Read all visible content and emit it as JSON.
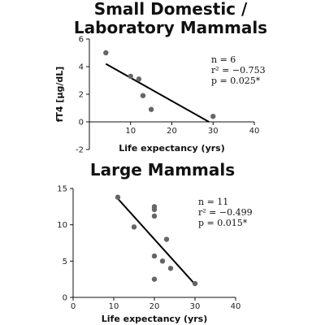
{
  "chart_data": [
    {
      "type": "scatter",
      "title_lines": [
        "Small Domestic /",
        "Laboratory Mammals"
      ],
      "xlabel": "Life expectancy (yrs)",
      "ylabel": "fT4 [μg/dL]",
      "xlim": [
        0,
        40
      ],
      "ylim": [
        -2,
        6
      ],
      "xticks": [
        10,
        20,
        30,
        40
      ],
      "yticks": [
        -2,
        0,
        2,
        4,
        6
      ],
      "points": [
        {
          "x": 4,
          "y": 5.0
        },
        {
          "x": 10,
          "y": 3.3
        },
        {
          "x": 12,
          "y": 3.1
        },
        {
          "x": 13,
          "y": 1.9
        },
        {
          "x": 15,
          "y": 0.9
        },
        {
          "x": 30,
          "y": 0.4
        }
      ],
      "fit_line": {
        "x": [
          4,
          29
        ],
        "y": [
          4.2,
          0
        ]
      },
      "annotations": [
        "n = 6",
        "r² = −0.753",
        "p = 0.025*"
      ]
    },
    {
      "type": "scatter",
      "title_lines": [
        "Large Mammals"
      ],
      "xlabel": "Life expectancy (yrs)",
      "ylabel": "",
      "xlim": [
        0,
        40
      ],
      "ylim": [
        0,
        15
      ],
      "xticks": [
        0,
        10,
        20,
        30,
        40
      ],
      "yticks": [
        0,
        5,
        10,
        15
      ],
      "points": [
        {
          "x": 11,
          "y": 13.8
        },
        {
          "x": 15,
          "y": 9.7
        },
        {
          "x": 20,
          "y": 12.5
        },
        {
          "x": 20,
          "y": 12.1
        },
        {
          "x": 20,
          "y": 11.2
        },
        {
          "x": 23,
          "y": 8.0
        },
        {
          "x": 20,
          "y": 5.7
        },
        {
          "x": 22,
          "y": 5.0
        },
        {
          "x": 24,
          "y": 4.0
        },
        {
          "x": 20,
          "y": 2.5
        },
        {
          "x": 30,
          "y": 1.9
        }
      ],
      "fit_line": {
        "x": [
          11,
          30
        ],
        "y": [
          13.6,
          1.8
        ]
      },
      "annotations": [
        "n = 11",
        "r² = −0.499",
        "p = 0.015*"
      ]
    }
  ]
}
